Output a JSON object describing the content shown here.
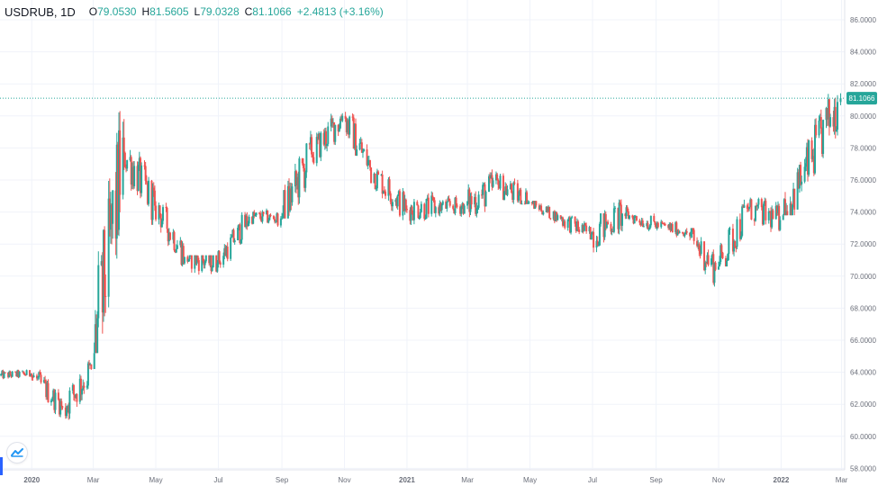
{
  "legend": {
    "symbol": "USDRUB, 1D",
    "open_label": "O",
    "open": "79.0530",
    "high_label": "H",
    "high": "81.5605",
    "low_label": "L",
    "low": "79.0328",
    "close_label": "C",
    "close": "81.1066",
    "change": "+2.4813 (+3.16%)"
  },
  "colors": {
    "up": "#26a69a",
    "down": "#ef5350",
    "grid": "#f0f3fa",
    "axis_text": "#6b6f7a",
    "price_line": "#26a69a",
    "badge_bg": "#26a69a"
  },
  "icons": {
    "logo": "tradingview-logo-icon"
  },
  "chart_data": {
    "type": "candlestick",
    "title": "USDRUB, 1D",
    "ylim": [
      58,
      87
    ],
    "y_ticks": [
      "86.0000",
      "84.0000",
      "82.0000",
      "80.0000",
      "78.0000",
      "76.0000",
      "74.0000",
      "72.0000",
      "70.0000",
      "68.0000",
      "66.0000",
      "64.0000",
      "62.0000",
      "60.0000",
      "58.0000"
    ],
    "x_ticks": [
      "2020",
      "Mar",
      "May",
      "Jul",
      "Sep",
      "Nov",
      "2021",
      "Mar",
      "May",
      "Jul",
      "Sep",
      "Nov",
      "2022",
      "Mar"
    ],
    "x_range": [
      "2019-12-01",
      "2022-03-04"
    ],
    "last_price": "81.1066",
    "grid": true,
    "series": [
      {
        "values_by_month": [
          {
            "month": "2019-12",
            "open": 63.8,
            "high": 64.6,
            "low": 63.4,
            "close": 63.9
          },
          {
            "month": "2020-01",
            "open": 63.9,
            "high": 64.2,
            "low": 61.0,
            "close": 61.8
          },
          {
            "month": "2020-02",
            "open": 61.8,
            "high": 66.0,
            "low": 61.0,
            "close": 64.2
          },
          {
            "month": "2020-03",
            "open": 64.2,
            "high": 82.8,
            "low": 65.2,
            "close": 77.7
          },
          {
            "month": "2020-04",
            "open": 77.7,
            "high": 79.2,
            "low": 73.2,
            "close": 74.4
          },
          {
            "month": "2020-05",
            "open": 74.4,
            "high": 74.9,
            "low": 70.6,
            "close": 71.2
          },
          {
            "month": "2020-06",
            "open": 71.2,
            "high": 71.3,
            "low": 68.0,
            "close": 70.8
          },
          {
            "month": "2020-07",
            "open": 70.8,
            "high": 74.0,
            "low": 70.5,
            "close": 73.7
          },
          {
            "month": "2020-08",
            "open": 73.7,
            "high": 74.8,
            "low": 72.8,
            "close": 73.6
          },
          {
            "month": "2020-09",
            "open": 73.6,
            "high": 80.0,
            "low": 73.6,
            "close": 77.6
          },
          {
            "month": "2020-10",
            "open": 77.6,
            "high": 80.9,
            "low": 76.5,
            "close": 80.0
          },
          {
            "month": "2020-11",
            "open": 80.0,
            "high": 80.5,
            "low": 75.8,
            "close": 76.4
          },
          {
            "month": "2020-12",
            "open": 76.4,
            "high": 76.7,
            "low": 72.8,
            "close": 74.2
          },
          {
            "month": "2021-01",
            "open": 74.2,
            "high": 76.4,
            "low": 72.9,
            "close": 74.3
          },
          {
            "month": "2021-02",
            "open": 74.3,
            "high": 75.1,
            "low": 72.6,
            "close": 74.4
          },
          {
            "month": "2021-03",
            "open": 74.4,
            "high": 77.3,
            "low": 72.5,
            "close": 75.7
          },
          {
            "month": "2021-04",
            "open": 75.7,
            "high": 78.0,
            "low": 74.5,
            "close": 74.6
          },
          {
            "month": "2021-05",
            "open": 74.6,
            "high": 74.7,
            "low": 73.0,
            "close": 73.6
          },
          {
            "month": "2021-06",
            "open": 73.6,
            "high": 74.0,
            "low": 71.5,
            "close": 72.6
          },
          {
            "month": "2021-07",
            "open": 72.6,
            "high": 75.3,
            "low": 70.8,
            "close": 73.9
          },
          {
            "month": "2021-08",
            "open": 73.9,
            "high": 74.9,
            "low": 72.7,
            "close": 73.2
          },
          {
            "month": "2021-09",
            "open": 73.2,
            "high": 74.0,
            "low": 72.2,
            "close": 72.8
          },
          {
            "month": "2021-10",
            "open": 72.8,
            "high": 73.0,
            "low": 68.3,
            "close": 70.4
          },
          {
            "month": "2021-11",
            "open": 70.4,
            "high": 75.6,
            "low": 70.6,
            "close": 74.2
          },
          {
            "month": "2021-12",
            "open": 74.2,
            "high": 74.9,
            "low": 71.0,
            "close": 73.5
          },
          {
            "month": "2022-01",
            "open": 73.5,
            "high": 80.3,
            "low": 73.8,
            "close": 77.3
          },
          {
            "month": "2022-02",
            "open": 77.3,
            "high": 81.6,
            "low": 74.2,
            "close": 81.1
          }
        ]
      }
    ]
  }
}
